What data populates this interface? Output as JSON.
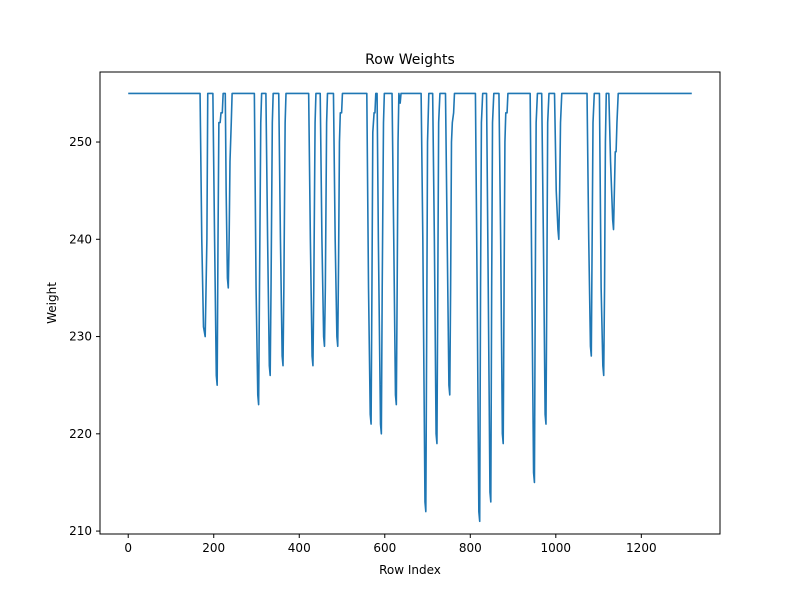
{
  "chart_data": {
    "type": "line",
    "title": "Row Weights",
    "xlabel": "Row Index",
    "ylabel": "Weight",
    "xlim": [
      -66,
      1384
    ],
    "ylim": [
      209.7,
      257.2
    ],
    "xticks": [
      0,
      200,
      400,
      600,
      800,
      1000,
      1200
    ],
    "yticks": [
      210,
      220,
      230,
      240,
      250
    ],
    "grid": false,
    "legend": "none",
    "colors": {
      "series": "#1f77b4"
    },
    "series": [
      {
        "points": [
          [
            0,
            255
          ],
          [
            168,
            255
          ],
          [
            172,
            240
          ],
          [
            176,
            231
          ],
          [
            180,
            230
          ],
          [
            184,
            240
          ],
          [
            186,
            255
          ],
          [
            198,
            255
          ],
          [
            202,
            240
          ],
          [
            206,
            226
          ],
          [
            208,
            225
          ],
          [
            210,
            240
          ],
          [
            212,
            252
          ],
          [
            215,
            252
          ],
          [
            217,
            253
          ],
          [
            220,
            253
          ],
          [
            222,
            255
          ],
          [
            227,
            255
          ],
          [
            229,
            245
          ],
          [
            232,
            236
          ],
          [
            234,
            235
          ],
          [
            236,
            240
          ],
          [
            238,
            248
          ],
          [
            241,
            252
          ],
          [
            243,
            255
          ],
          [
            295,
            255
          ],
          [
            299,
            235
          ],
          [
            303,
            224
          ],
          [
            305,
            223
          ],
          [
            307,
            235
          ],
          [
            310,
            252
          ],
          [
            312,
            255
          ],
          [
            322,
            255
          ],
          [
            326,
            240
          ],
          [
            330,
            227
          ],
          [
            332,
            226
          ],
          [
            334,
            235
          ],
          [
            337,
            252
          ],
          [
            339,
            255
          ],
          [
            352,
            255
          ],
          [
            356,
            240
          ],
          [
            360,
            228
          ],
          [
            362,
            227
          ],
          [
            364,
            235
          ],
          [
            367,
            252
          ],
          [
            369,
            255
          ],
          [
            422,
            255
          ],
          [
            426,
            240
          ],
          [
            430,
            228
          ],
          [
            432,
            227
          ],
          [
            434,
            235
          ],
          [
            437,
            252
          ],
          [
            439,
            255
          ],
          [
            449,
            255
          ],
          [
            453,
            240
          ],
          [
            457,
            230
          ],
          [
            459,
            229
          ],
          [
            461,
            235
          ],
          [
            464,
            252
          ],
          [
            466,
            255
          ],
          [
            480,
            255
          ],
          [
            484,
            240
          ],
          [
            488,
            230
          ],
          [
            490,
            229
          ],
          [
            492,
            238
          ],
          [
            494,
            250
          ],
          [
            496,
            253
          ],
          [
            499,
            253
          ],
          [
            501,
            255
          ],
          [
            558,
            255
          ],
          [
            562,
            235
          ],
          [
            566,
            222
          ],
          [
            568,
            221
          ],
          [
            570,
            235
          ],
          [
            572,
            251
          ],
          [
            575,
            253
          ],
          [
            577,
            253
          ],
          [
            579,
            255
          ],
          [
            582,
            255
          ],
          [
            585,
            240
          ],
          [
            590,
            221
          ],
          [
            592,
            220
          ],
          [
            594,
            235
          ],
          [
            597,
            252
          ],
          [
            599,
            255
          ],
          [
            617,
            255
          ],
          [
            621,
            240
          ],
          [
            625,
            224
          ],
          [
            627,
            223
          ],
          [
            629,
            235
          ],
          [
            631,
            250
          ],
          [
            633,
            255
          ],
          [
            636,
            254
          ],
          [
            638,
            255
          ],
          [
            685,
            255
          ],
          [
            689,
            240
          ],
          [
            694,
            213
          ],
          [
            696,
            212
          ],
          [
            698,
            230
          ],
          [
            700,
            250
          ],
          [
            703,
            255
          ],
          [
            712,
            255
          ],
          [
            716,
            240
          ],
          [
            720,
            220
          ],
          [
            722,
            219
          ],
          [
            724,
            235
          ],
          [
            726,
            252
          ],
          [
            729,
            255
          ],
          [
            742,
            255
          ],
          [
            746,
            240
          ],
          [
            750,
            225
          ],
          [
            752,
            224
          ],
          [
            754,
            235
          ],
          [
            756,
            250
          ],
          [
            758,
            252
          ],
          [
            761,
            253
          ],
          [
            763,
            255
          ],
          [
            812,
            255
          ],
          [
            816,
            235
          ],
          [
            820,
            212
          ],
          [
            822,
            211
          ],
          [
            824,
            235
          ],
          [
            826,
            252
          ],
          [
            829,
            255
          ],
          [
            838,
            255
          ],
          [
            842,
            235
          ],
          [
            846,
            214
          ],
          [
            848,
            213
          ],
          [
            850,
            235
          ],
          [
            852,
            252
          ],
          [
            855,
            255
          ],
          [
            867,
            255
          ],
          [
            871,
            240
          ],
          [
            875,
            220
          ],
          [
            877,
            219
          ],
          [
            879,
            235
          ],
          [
            881,
            250
          ],
          [
            883,
            253
          ],
          [
            886,
            253
          ],
          [
            888,
            255
          ],
          [
            940,
            255
          ],
          [
            944,
            235
          ],
          [
            948,
            216
          ],
          [
            950,
            215
          ],
          [
            952,
            235
          ],
          [
            954,
            252
          ],
          [
            957,
            255
          ],
          [
            967,
            255
          ],
          [
            971,
            240
          ],
          [
            975,
            222
          ],
          [
            977,
            221
          ],
          [
            979,
            235
          ],
          [
            981,
            252
          ],
          [
            984,
            255
          ],
          [
            997,
            255
          ],
          [
            1001,
            245
          ],
          [
            1005,
            241
          ],
          [
            1007,
            240
          ],
          [
            1009,
            245
          ],
          [
            1011,
            252
          ],
          [
            1014,
            255
          ],
          [
            1073,
            255
          ],
          [
            1077,
            240
          ],
          [
            1081,
            229
          ],
          [
            1083,
            228
          ],
          [
            1085,
            240
          ],
          [
            1087,
            252
          ],
          [
            1090,
            255
          ],
          [
            1102,
            255
          ],
          [
            1106,
            235
          ],
          [
            1110,
            227
          ],
          [
            1112,
            226
          ],
          [
            1114,
            235
          ],
          [
            1116,
            250
          ],
          [
            1118,
            255
          ],
          [
            1124,
            255
          ],
          [
            1128,
            248
          ],
          [
            1133,
            242
          ],
          [
            1135,
            241
          ],
          [
            1137,
            245
          ],
          [
            1139,
            249
          ],
          [
            1141,
            249
          ],
          [
            1143,
            252
          ],
          [
            1146,
            255
          ],
          [
            1318,
            255
          ]
        ]
      }
    ]
  }
}
